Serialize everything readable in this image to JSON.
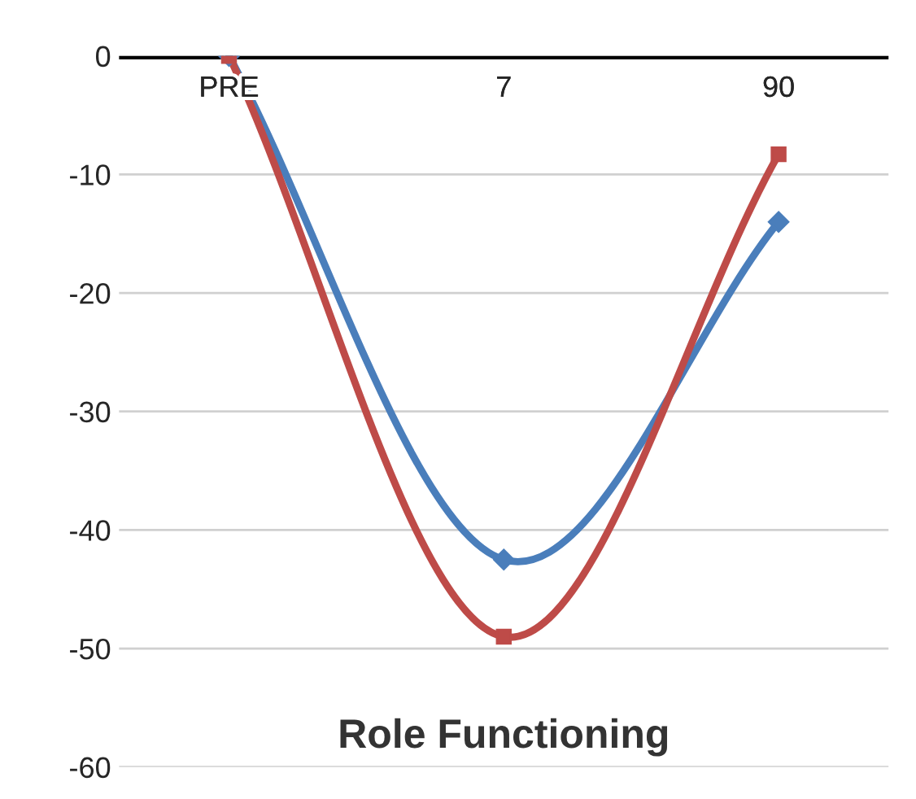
{
  "chart_data": {
    "type": "line",
    "title": "Role Functioning",
    "categories": [
      "PRE",
      "7",
      "90"
    ],
    "series": [
      {
        "color": "#4a7ebb",
        "values": [
          0,
          -42.5,
          -14
        ],
        "marker": "diamond"
      },
      {
        "color": "#be4b48",
        "values": [
          0,
          -49,
          -8.3
        ],
        "marker": "square"
      }
    ],
    "ylim": [
      -60,
      0
    ],
    "yticks": [
      -60,
      -50,
      -40,
      -30,
      -20,
      -10,
      0
    ],
    "grid": "y",
    "legend": false
  }
}
